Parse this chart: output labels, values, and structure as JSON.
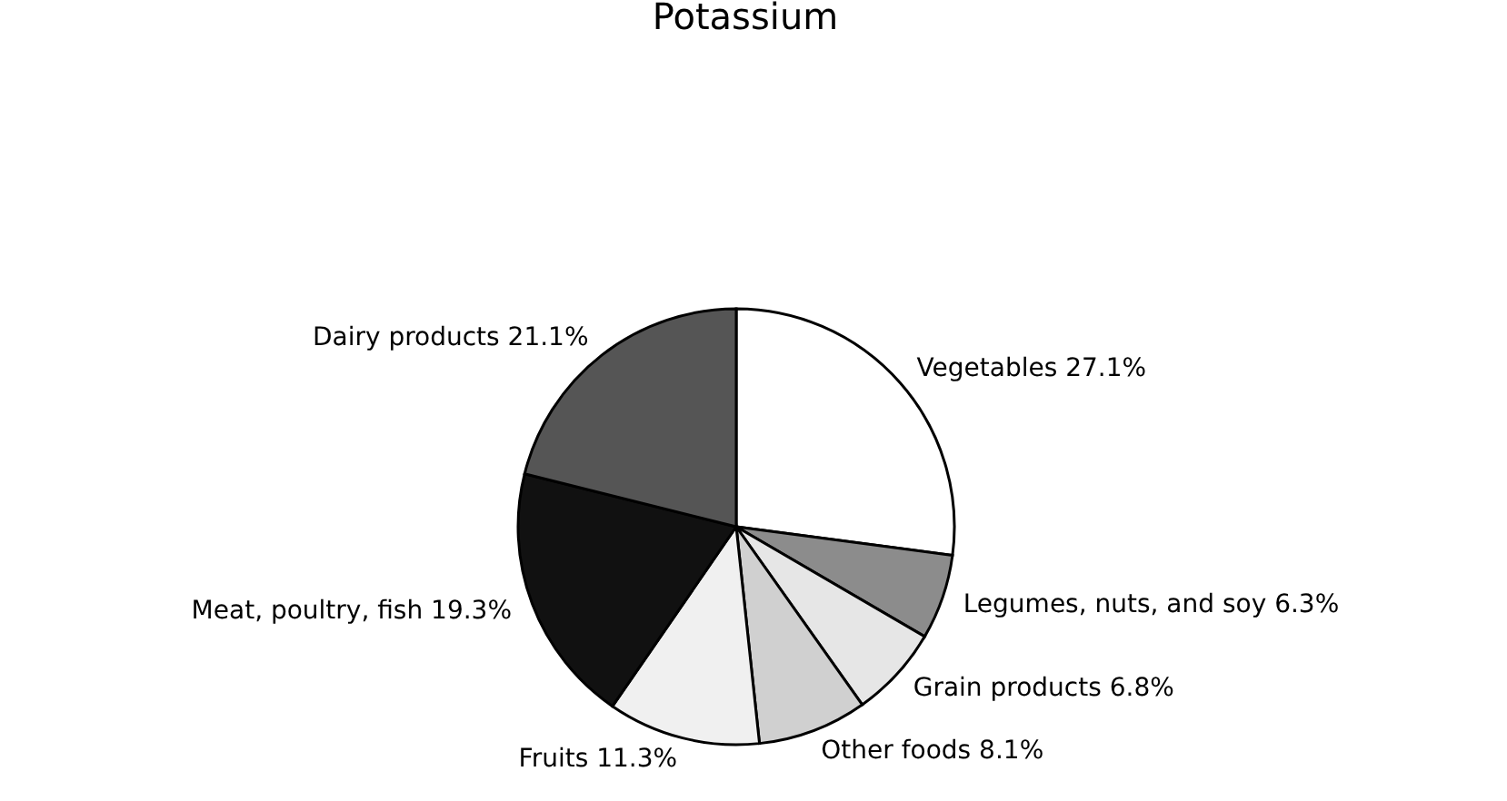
{
  "chart_data": {
    "type": "pie",
    "title": "Potassium",
    "categories": [
      "Vegetables",
      "Legumes, nuts, and soy",
      "Grain products",
      "Other foods",
      "Fruits",
      "Meat, poultry, fish",
      "Dairy products"
    ],
    "values": [
      27.1,
      6.3,
      6.8,
      8.1,
      11.3,
      19.3,
      21.1
    ],
    "value_labels": [
      "27.1%",
      "6.3%",
      "6.8%",
      "8.1%",
      "11.3%",
      "19.3%",
      "21.1%"
    ],
    "colors": [
      "#ffffff",
      "#8c8c8c",
      "#e6e6e6",
      "#d0d0d0",
      "#f0f0f0",
      "#111111",
      "#555555"
    ]
  }
}
